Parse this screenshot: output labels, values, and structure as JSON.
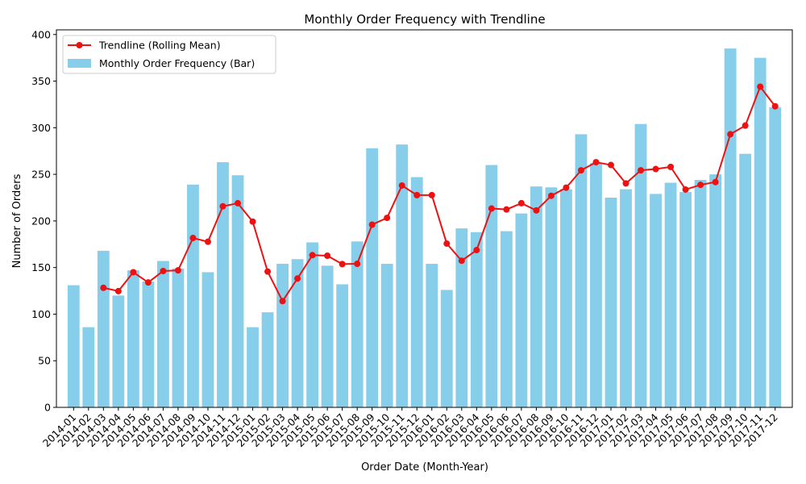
{
  "chart_data": {
    "type": "bar",
    "title": "Monthly Order Frequency with Trendline",
    "xlabel": "Order Date (Month-Year)",
    "ylabel": "Number of Orders",
    "ylim": [
      0,
      405
    ],
    "yticks": [
      0,
      50,
      100,
      150,
      200,
      250,
      300,
      350,
      400
    ],
    "grid": false,
    "legend_position": "top-left",
    "categories": [
      "2014-01",
      "2014-02",
      "2014-03",
      "2014-04",
      "2014-05",
      "2014-06",
      "2014-07",
      "2014-08",
      "2014-09",
      "2014-10",
      "2014-11",
      "2014-12",
      "2015-01",
      "2015-02",
      "2015-03",
      "2015-04",
      "2015-05",
      "2015-06",
      "2015-07",
      "2015-08",
      "2015-09",
      "2015-10",
      "2015-11",
      "2015-12",
      "2016-01",
      "2016-02",
      "2016-03",
      "2016-04",
      "2016-05",
      "2016-06",
      "2016-07",
      "2016-08",
      "2016-09",
      "2016-10",
      "2016-11",
      "2016-12",
      "2017-01",
      "2017-02",
      "2017-03",
      "2017-04",
      "2017-05",
      "2017-06",
      "2017-07",
      "2017-08",
      "2017-09",
      "2017-10",
      "2017-11",
      "2017-12"
    ],
    "series": [
      {
        "name": "Monthly Order Frequency (Bar)",
        "kind": "bar",
        "color": "#87ceeb",
        "values": [
          131,
          86,
          168,
          120,
          147,
          135,
          157,
          149,
          239,
          145,
          263,
          249,
          86,
          102,
          154,
          159,
          177,
          152,
          132,
          178,
          278,
          154,
          282,
          247,
          154,
          126,
          192,
          188,
          260,
          189,
          208,
          237,
          236,
          234,
          293,
          262,
          225,
          234,
          304,
          229,
          241,
          231,
          244,
          250,
          385,
          272,
          375,
          322
        ]
      },
      {
        "name": "Trendline (Rolling Mean)",
        "kind": "line",
        "color": "#ee1111",
        "values": [
          null,
          null,
          128.3,
          124.7,
          145.0,
          134.0,
          146.3,
          147.0,
          181.7,
          177.7,
          215.7,
          219.0,
          199.3,
          145.7,
          114.0,
          138.3,
          163.3,
          162.7,
          153.7,
          154.0,
          196.0,
          203.3,
          238.0,
          227.7,
          227.7,
          175.7,
          157.3,
          168.7,
          213.3,
          212.3,
          219.0,
          211.3,
          227.0,
          235.7,
          254.3,
          263.0,
          260.0,
          240.3,
          254.3,
          255.7,
          258.0,
          233.7,
          238.7,
          241.7,
          293.0,
          302.3,
          344.0,
          323.0
        ]
      }
    ]
  }
}
